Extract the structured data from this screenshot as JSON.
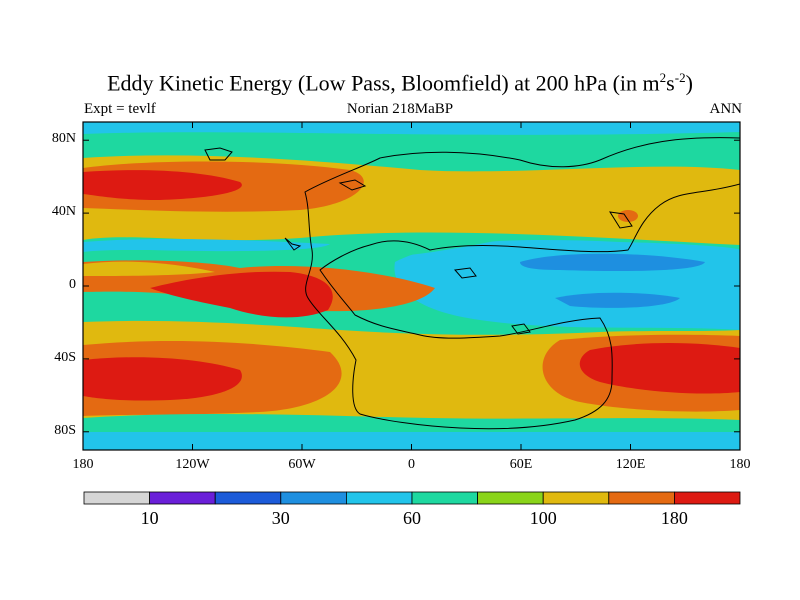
{
  "title": {
    "main": "Eddy Kinetic Energy (Low Pass, Bloomfield) at 200 hPa (in m",
    "sup1": "2",
    "mid": "s",
    "sup2": "-2",
    "end": ")"
  },
  "subtitle": {
    "left": "Expt = tevlf",
    "center": "Norian 218MaBP",
    "right": "ANN"
  },
  "map": {
    "projection": "cylindrical equidistant",
    "lon_range": [
      -180,
      180
    ],
    "lat_range": [
      -90,
      90
    ],
    "y_ticks": [
      {
        "label": "80N",
        "lat": 80
      },
      {
        "label": "40N",
        "lat": 40
      },
      {
        "label": "0",
        "lat": 0
      },
      {
        "label": "40S",
        "lat": -40
      },
      {
        "label": "80S",
        "lat": -80
      }
    ],
    "x_ticks": [
      {
        "label": "180",
        "lon": -180
      },
      {
        "label": "120W",
        "lon": -120
      },
      {
        "label": "60W",
        "lon": -60
      },
      {
        "label": "0",
        "lon": 0
      },
      {
        "label": "60E",
        "lon": 60
      },
      {
        "label": "120E",
        "lon": 120
      },
      {
        "label": "180",
        "lon": 180
      }
    ],
    "colors": {
      "bin0": "#d6d6d6",
      "bin1": "#6a1fd8",
      "bin2": "#1c5bd9",
      "bin3": "#1e8fe0",
      "bin4": "#22c4ea",
      "bin5": "#1ed8a0",
      "bin6": "#8ad41a",
      "bin7": "#e0b90f",
      "bin8": "#e46a12",
      "bin9": "#dd1a12"
    }
  },
  "colorbar": {
    "colors": [
      "#d6d6d6",
      "#6a1fd8",
      "#1c5bd9",
      "#1e8fe0",
      "#22c4ea",
      "#1ed8a0",
      "#8ad41a",
      "#e0b90f",
      "#e46a12",
      "#dd1a12"
    ],
    "labels": [
      {
        "text": "10",
        "boundary": 1
      },
      {
        "text": "30",
        "boundary": 3
      },
      {
        "text": "60",
        "boundary": 5
      },
      {
        "text": "100",
        "boundary": 7
      },
      {
        "text": "180",
        "boundary": 9
      }
    ]
  }
}
